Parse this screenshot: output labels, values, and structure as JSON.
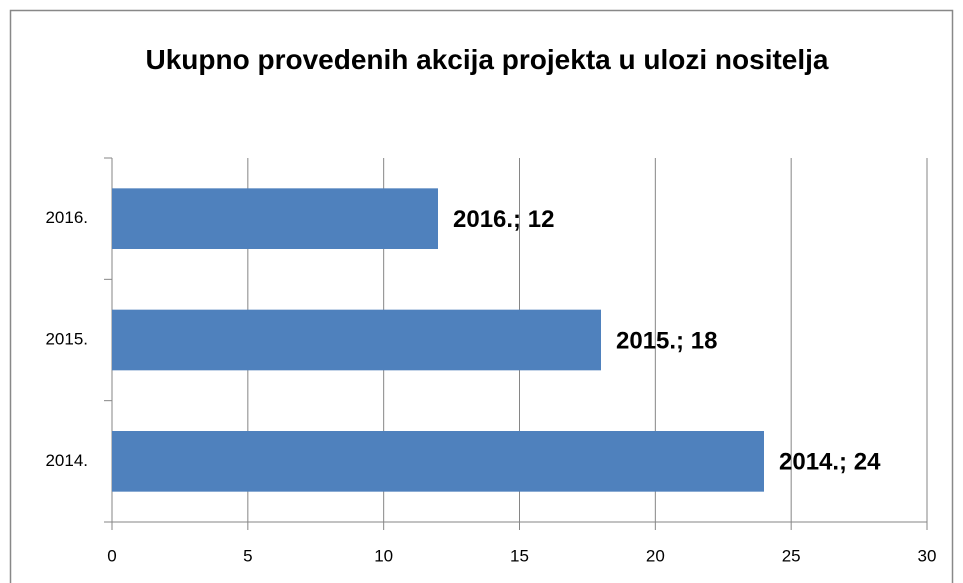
{
  "chart_data": {
    "type": "bar",
    "orientation": "horizontal",
    "title": "Ukupno provedenih akcija projekta u ulozi nositelja",
    "categories": [
      "2014.",
      "2015.",
      "2016."
    ],
    "values": [
      24,
      18,
      12
    ],
    "value_labels": [
      "2014.; 24",
      "2015.; 18",
      "2016.; 12"
    ],
    "color": "#4f81bd",
    "xlim": [
      0,
      30
    ],
    "xticks": [
      0,
      5,
      10,
      15,
      20,
      25,
      30
    ],
    "grid": true
  }
}
